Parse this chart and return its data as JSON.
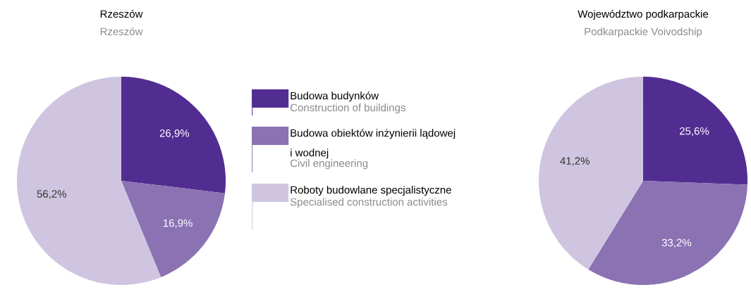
{
  "chart_data": [
    {
      "type": "pie",
      "title": "Rzeszów",
      "subtitle": "Rzeszów",
      "categories": [
        "Budowa budynków",
        "Budowa obiektów inżynierii lądowej i wodnej",
        "Roboty budowlane specjalistyczne"
      ],
      "values": [
        26.9,
        16.9,
        56.2
      ],
      "value_labels": [
        "26,9%",
        "16,9%",
        "56,2%"
      ],
      "colors": [
        "#522d91",
        "#8a72b3",
        "#cfc5e0"
      ],
      "legend": "right"
    },
    {
      "type": "pie",
      "title": "Województwo podkarpackie",
      "subtitle": "Podkarpackie Voivodship",
      "categories": [
        "Construction of buildings",
        "Civil engineering",
        "Specialised construction activities"
      ],
      "values": [
        25.6,
        33.2,
        41.2
      ],
      "value_labels": [
        "25,6%",
        "33,2%",
        "41,2%"
      ],
      "colors": [
        "#522d91",
        "#8a72b3",
        "#cfc5e0"
      ]
    }
  ]
}
